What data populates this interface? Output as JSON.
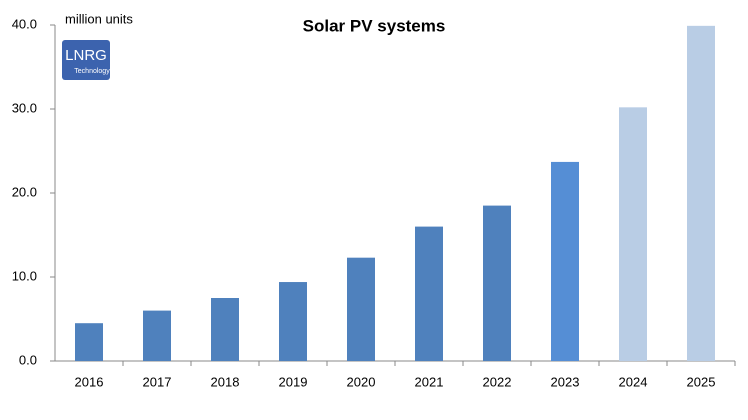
{
  "chart_data": {
    "type": "bar",
    "title": "Solar PV systems",
    "y_label": "million units",
    "categories": [
      "2016",
      "2017",
      "2018",
      "2019",
      "2020",
      "2021",
      "2022",
      "2023",
      "2024",
      "2025"
    ],
    "values": [
      4.5,
      6.0,
      7.5,
      9.4,
      12.3,
      16.0,
      18.5,
      23.7,
      30.2,
      39.9
    ],
    "colors": [
      "#4f81bd",
      "#4f81bd",
      "#4f81bd",
      "#4f81bd",
      "#4f81bd",
      "#4f81bd",
      "#4f81bd",
      "#558ed5",
      "#b9cde5",
      "#b9cde5"
    ],
    "ylim": [
      0,
      40
    ],
    "yticks": [
      {
        "value": 0,
        "label": "0.0"
      },
      {
        "value": 10,
        "label": "10.0"
      },
      {
        "value": 20,
        "label": "20.0"
      },
      {
        "value": 30,
        "label": "30.0"
      },
      {
        "value": 40,
        "label": "40.0"
      }
    ],
    "grid": false
  },
  "logo": {
    "name": "LNRG",
    "tagline": "Technology"
  }
}
